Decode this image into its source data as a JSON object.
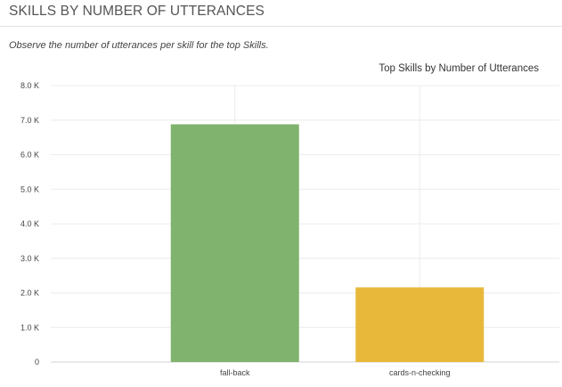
{
  "panel": {
    "title": "SKILLS BY NUMBER OF UTTERANCES",
    "description": "Observe the number of utterances per skill for the top Skills."
  },
  "chart_data": {
    "type": "bar",
    "title": "Top Skills by Number of Utterances",
    "xlabel": "",
    "ylabel": "",
    "categories": [
      "fall-back",
      "cards-n-checking"
    ],
    "values": [
      6880,
      2160
    ],
    "colors": [
      "#80b36e",
      "#e8b83a"
    ],
    "ylim": [
      0,
      8000
    ],
    "yticks": [
      0,
      1000,
      2000,
      3000,
      4000,
      5000,
      6000,
      7000,
      8000
    ],
    "ytick_labels": [
      "0",
      "1.0 K",
      "2.0 K",
      "3.0 K",
      "4.0 K",
      "5.0 K",
      "6.0 K",
      "7.0 K",
      "8.0 K"
    ],
    "grid": true,
    "legend": "none"
  }
}
